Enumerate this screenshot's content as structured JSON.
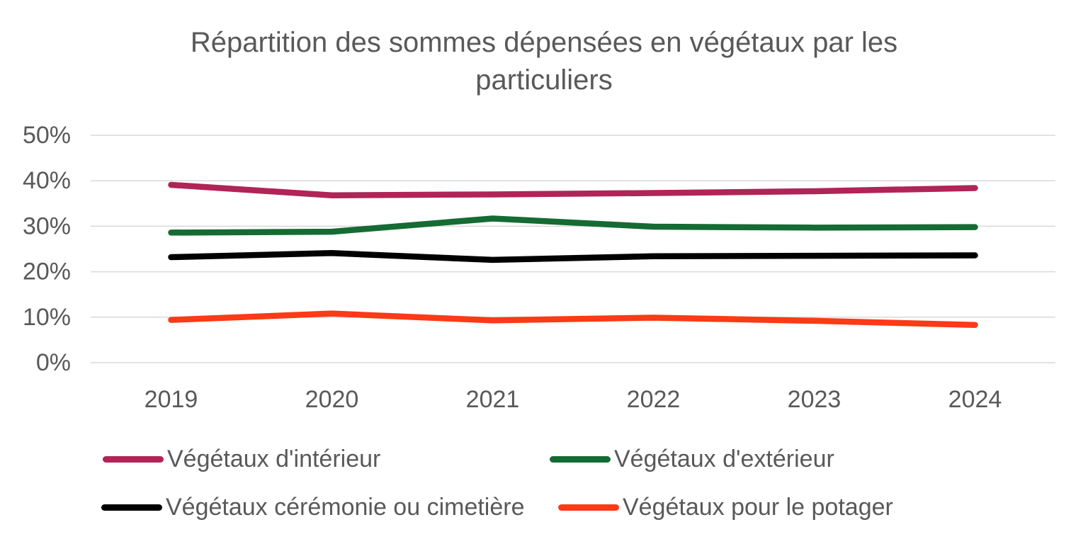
{
  "chart_data": {
    "type": "line",
    "title": "Répartition des sommes dépensées en végétaux par les particuliers",
    "categories": [
      "2019",
      "2020",
      "2021",
      "2022",
      "2023",
      "2024"
    ],
    "series": [
      {
        "name": "Végétaux d'intérieur",
        "color": "#B02456",
        "values": [
          39.1,
          36.8,
          37.0,
          37.3,
          37.7,
          38.4
        ]
      },
      {
        "name": "Végétaux d'extérieur",
        "color": "#156B33",
        "values": [
          28.6,
          28.8,
          31.7,
          29.9,
          29.7,
          29.8
        ]
      },
      {
        "name": "Végétaux cérémonie ou cimetière",
        "color": "#000000",
        "values": [
          23.2,
          24.1,
          22.6,
          23.4,
          23.5,
          23.6
        ]
      },
      {
        "name": "Végétaux pour le potager",
        "color": "#FB3A17",
        "values": [
          9.4,
          10.8,
          9.3,
          9.9,
          9.2,
          8.3
        ]
      }
    ],
    "ylim": [
      0,
      50
    ],
    "ytick_step": 10,
    "ytick_labels": [
      "0%",
      "10%",
      "20%",
      "30%",
      "40%",
      "50%"
    ],
    "grid": true,
    "legend_position": "bottom",
    "colors": {
      "text": "#595959",
      "gridline": "#D9D9D9"
    }
  }
}
